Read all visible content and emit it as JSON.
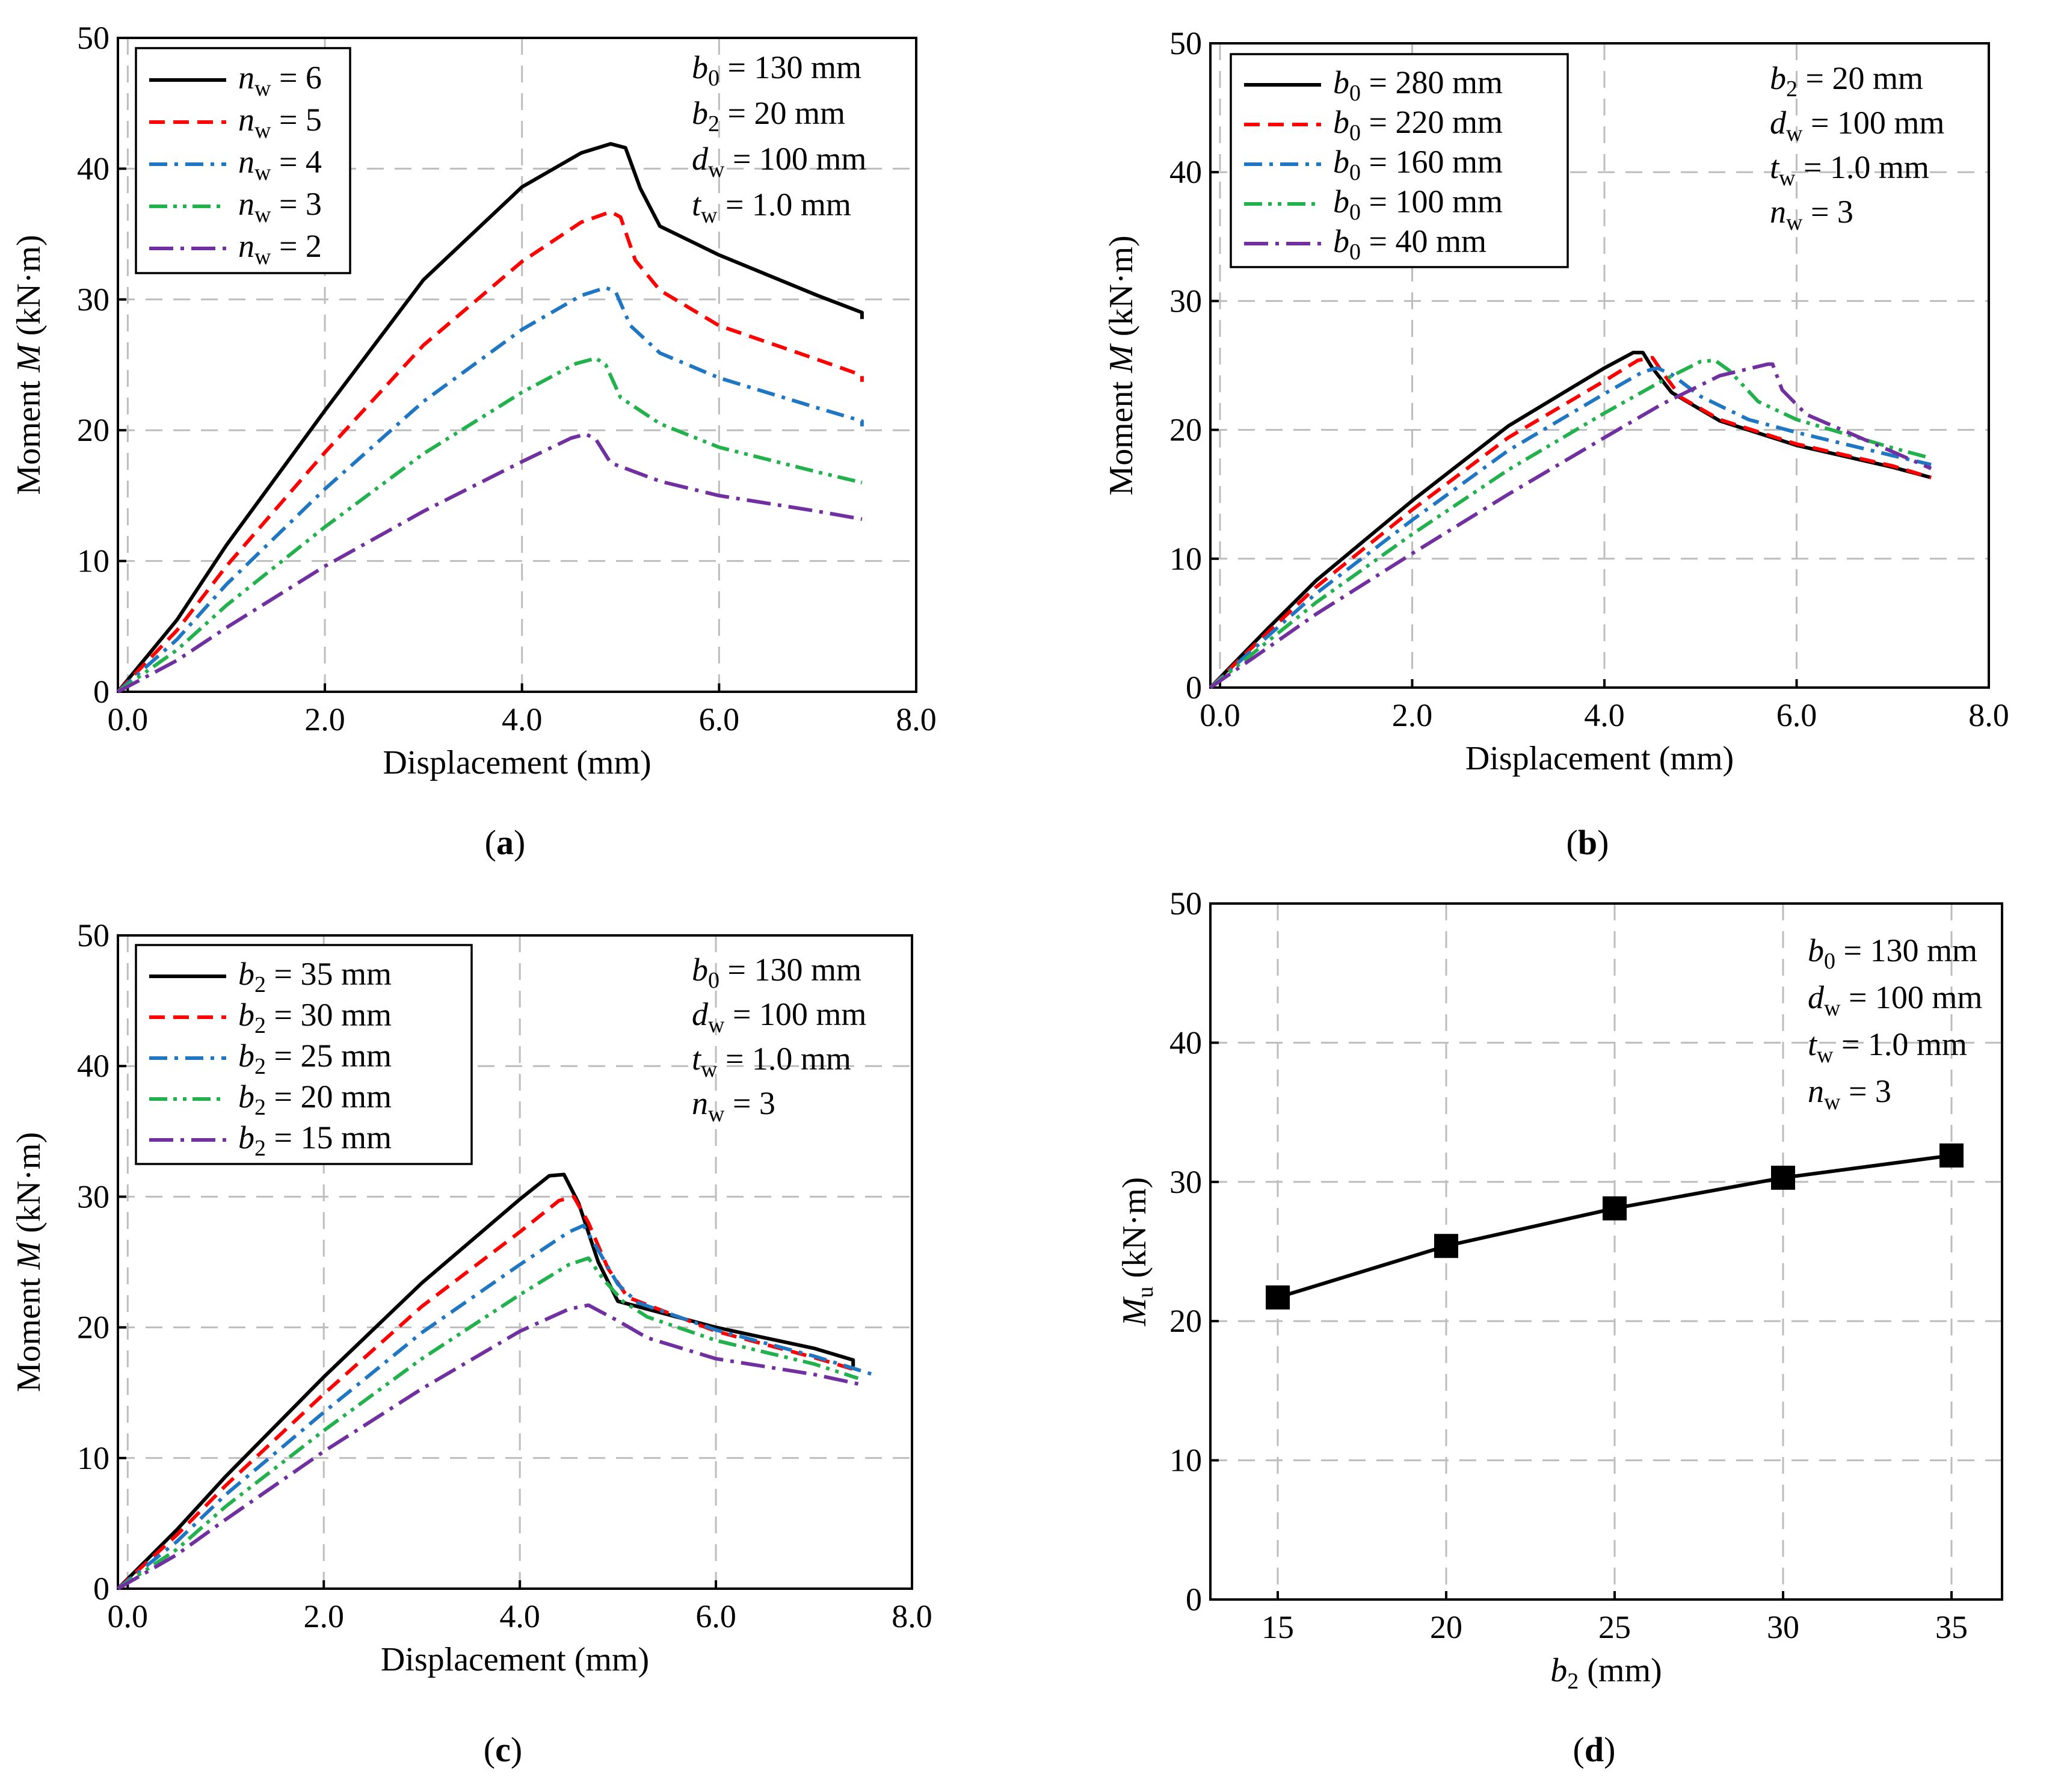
{
  "chart_data": [
    {
      "type": "line",
      "panel": "a",
      "caption_letter": "a",
      "xlabel": "Displacement (mm)",
      "ylabel": "Moment M (kN·m)",
      "ylabel_parts": {
        "pre": "Moment ",
        "ital": "M",
        "post": " (kN·m)"
      },
      "xlim": [
        -0.1,
        8.0
      ],
      "ylim": [
        0,
        50
      ],
      "xticks": [
        0,
        2,
        4,
        6,
        8
      ],
      "xticklabels": [
        "0.0",
        "2.0",
        "4.0",
        "6.0",
        "8.0"
      ],
      "yticks": [
        0,
        10,
        20,
        30,
        40,
        50
      ],
      "yticklabels": [
        "0",
        "10",
        "20",
        "30",
        "40",
        "50"
      ],
      "grid": true,
      "legend_position": "top-left",
      "annotations": [
        {
          "sym": "b",
          "sub": "0",
          "rest": " = 130 mm"
        },
        {
          "sym": "b",
          "sub": "2",
          "rest": " = 20 mm"
        },
        {
          "sym": "d",
          "sub": "w",
          "rest": " = 100 mm"
        },
        {
          "sym": "t",
          "sub": "w",
          "rest": " = 1.0 mm"
        }
      ],
      "series": [
        {
          "name": "nw = 6",
          "label": {
            "sym": "n",
            "sub": "w",
            "rest": " = 6"
          },
          "color": "#000000",
          "dash": "solid",
          "x": [
            -0.1,
            0.5,
            1.0,
            2.0,
            3.0,
            4.0,
            4.6,
            4.9,
            5.05,
            5.2,
            5.4,
            6.0,
            7.0,
            7.45,
            7.45
          ],
          "y": [
            0,
            5.5,
            11.2,
            21.5,
            31.5,
            38.6,
            41.2,
            41.9,
            41.6,
            38.5,
            35.6,
            33.4,
            30.3,
            29.0,
            28.5
          ]
        },
        {
          "name": "nw = 5",
          "label": {
            "sym": "n",
            "sub": "w",
            "rest": " = 5"
          },
          "color": "#ff0000",
          "dash": "dashed",
          "x": [
            -0.1,
            0.5,
            1.0,
            2.0,
            3.0,
            4.0,
            4.6,
            4.9,
            5.0,
            5.15,
            5.4,
            6.0,
            7.0,
            7.45,
            7.45
          ],
          "y": [
            0,
            4.7,
            9.6,
            18.3,
            26.5,
            32.9,
            35.9,
            36.7,
            36.3,
            33.0,
            30.7,
            28.0,
            25.4,
            24.2,
            23.7
          ]
        },
        {
          "name": "nw = 4",
          "label": {
            "sym": "n",
            "sub": "w",
            "rest": " = 4"
          },
          "color": "#1f77c4",
          "dash": "dashdot",
          "x": [
            -0.1,
            0.5,
            1.0,
            2.0,
            3.0,
            4.0,
            4.6,
            4.85,
            4.95,
            5.1,
            5.4,
            6.0,
            7.0,
            7.45,
            7.45
          ],
          "y": [
            0,
            4.0,
            8.2,
            15.5,
            22.2,
            27.7,
            30.3,
            30.9,
            30.6,
            28.0,
            25.9,
            24.0,
            21.7,
            20.7,
            20.3
          ]
        },
        {
          "name": "nw = 3",
          "label": {
            "sym": "n",
            "sub": "w",
            "rest": " = 3"
          },
          "color": "#22b14c",
          "dash": "dashdotdot",
          "x": [
            -0.1,
            0.5,
            1.0,
            2.0,
            3.0,
            4.0,
            4.55,
            4.75,
            4.85,
            5.0,
            5.4,
            6.0,
            7.0,
            7.45
          ],
          "y": [
            0,
            3.2,
            6.6,
            12.6,
            18.2,
            22.9,
            25.1,
            25.5,
            25.0,
            22.5,
            20.5,
            18.7,
            16.8,
            16.0
          ]
        },
        {
          "name": "nw = 2",
          "label": {
            "sym": "n",
            "sub": "w",
            "rest": " = 2"
          },
          "color": "#7030a0",
          "dash": "dashdotlong",
          "x": [
            -0.1,
            0.5,
            1.0,
            2.0,
            3.0,
            4.0,
            4.5,
            4.65,
            4.75,
            4.9,
            5.4,
            6.0,
            7.0,
            7.45
          ],
          "y": [
            0,
            2.4,
            4.9,
            9.6,
            13.8,
            17.6,
            19.4,
            19.7,
            19.3,
            17.5,
            16.1,
            15.0,
            13.8,
            13.2
          ]
        }
      ]
    },
    {
      "type": "line",
      "panel": "b",
      "caption_letter": "b",
      "xlabel": "Displacement (mm)",
      "ylabel": "Moment M (kN·m)",
      "ylabel_parts": {
        "pre": "Moment ",
        "ital": "M",
        "post": " (kN·m)"
      },
      "xlim": [
        -0.1,
        8.0
      ],
      "ylim": [
        0,
        50
      ],
      "xticks": [
        0,
        2,
        4,
        6,
        8
      ],
      "xticklabels": [
        "0.0",
        "2.0",
        "4.0",
        "6.0",
        "8.0"
      ],
      "yticks": [
        0,
        10,
        20,
        30,
        40,
        50
      ],
      "yticklabels": [
        "0",
        "10",
        "20",
        "30",
        "40",
        "50"
      ],
      "grid": true,
      "legend_position": "top-left",
      "annotations": [
        {
          "sym": "b",
          "sub": "2",
          "rest": " = 20 mm"
        },
        {
          "sym": "d",
          "sub": "w",
          "rest": " = 100 mm"
        },
        {
          "sym": "t",
          "sub": "w",
          "rest": " = 1.0 mm"
        },
        {
          "sym": "n",
          "sub": "w",
          "rest": " = 3"
        }
      ],
      "series": [
        {
          "name": "b0 = 280 mm",
          "label": {
            "sym": "b",
            "sub": "0",
            "rest": " = 280 mm"
          },
          "color": "#000000",
          "dash": "solid",
          "x": [
            -0.1,
            0.5,
            1.0,
            2.0,
            3.0,
            4.0,
            4.3,
            4.4,
            4.5,
            4.7,
            5.2,
            6.0,
            7.0,
            7.4
          ],
          "y": [
            0,
            4.6,
            8.3,
            14.5,
            20.3,
            24.8,
            26.0,
            26.0,
            24.8,
            22.9,
            20.7,
            18.8,
            17.1,
            16.3
          ]
        },
        {
          "name": "b0 = 220 mm",
          "label": {
            "sym": "b",
            "sub": "0",
            "rest": " = 220 mm"
          },
          "color": "#ff0000",
          "dash": "dashed",
          "x": [
            -0.1,
            0.5,
            1.0,
            2.0,
            3.0,
            4.0,
            4.35,
            4.5,
            4.6,
            4.8,
            5.2,
            6.0,
            7.0,
            7.4
          ],
          "y": [
            0,
            4.3,
            7.8,
            13.8,
            19.4,
            23.8,
            25.4,
            25.6,
            24.5,
            22.5,
            20.8,
            18.9,
            17.2,
            16.3
          ]
        },
        {
          "name": "b0 = 160 mm",
          "label": {
            "sym": "b",
            "sub": "0",
            "rest": " = 160 mm"
          },
          "color": "#1f77c4",
          "dash": "dashdot",
          "x": [
            -0.1,
            0.5,
            1.0,
            2.0,
            3.0,
            4.0,
            4.4,
            4.55,
            4.7,
            5.0,
            5.5,
            6.0,
            7.0,
            7.4
          ],
          "y": [
            0,
            4.0,
            7.3,
            13.0,
            18.4,
            22.8,
            24.5,
            24.8,
            24.3,
            22.6,
            20.8,
            19.8,
            18.0,
            17.3
          ]
        },
        {
          "name": "b0 = 100 mm",
          "label": {
            "sym": "b",
            "sub": "0",
            "rest": " = 100 mm"
          },
          "color": "#22b14c",
          "dash": "dashdotdot",
          "x": [
            -0.1,
            0.5,
            1.0,
            2.0,
            3.0,
            4.0,
            4.6,
            5.0,
            5.15,
            5.3,
            5.6,
            6.0,
            7.0,
            7.4
          ],
          "y": [
            0,
            3.6,
            6.6,
            11.9,
            16.9,
            21.3,
            23.8,
            25.3,
            25.4,
            24.6,
            22.2,
            20.8,
            18.6,
            17.8
          ]
        },
        {
          "name": "b0 = 40 mm",
          "label": {
            "sym": "b",
            "sub": "0",
            "rest": " = 40 mm"
          },
          "color": "#7030a0",
          "dash": "dashdotlong",
          "x": [
            -0.1,
            0.5,
            1.0,
            2.0,
            3.0,
            4.0,
            4.6,
            5.2,
            5.7,
            5.75,
            5.85,
            6.1,
            7.0,
            7.4
          ],
          "y": [
            0,
            3.1,
            5.7,
            10.4,
            15.0,
            19.4,
            22.0,
            24.2,
            25.1,
            25.1,
            23.1,
            21.2,
            18.3,
            17.0
          ]
        }
      ]
    },
    {
      "type": "line",
      "panel": "c",
      "caption_letter": "c",
      "xlabel": "Displacement (mm)",
      "ylabel": "Moment M (kN·m)",
      "ylabel_parts": {
        "pre": "Moment ",
        "ital": "M",
        "post": " (kN·m)"
      },
      "xlim": [
        -0.1,
        8.0
      ],
      "ylim": [
        0,
        50
      ],
      "xticks": [
        0,
        2,
        4,
        6,
        8
      ],
      "xticklabels": [
        "0.0",
        "2.0",
        "4.0",
        "6.0",
        "8.0"
      ],
      "yticks": [
        0,
        10,
        20,
        30,
        40,
        50
      ],
      "yticklabels": [
        "0",
        "10",
        "20",
        "30",
        "40",
        "50"
      ],
      "grid": true,
      "legend_position": "top-left",
      "annotations": [
        {
          "sym": "b",
          "sub": "0",
          "rest": " = 130 mm"
        },
        {
          "sym": "d",
          "sub": "w",
          "rest": " = 100 mm"
        },
        {
          "sym": "t",
          "sub": "w",
          "rest": " = 1.0 mm"
        },
        {
          "sym": "n",
          "sub": "w",
          "rest": " = 3"
        }
      ],
      "series": [
        {
          "name": "b2 = 35 mm",
          "label": {
            "sym": "b",
            "sub": "2",
            "rest": " = 35 mm"
          },
          "color": "#000000",
          "dash": "solid",
          "x": [
            -0.1,
            0.5,
            1.0,
            2.0,
            3.0,
            4.0,
            4.3,
            4.45,
            4.6,
            4.8,
            5.0,
            6.0,
            7.0,
            7.4,
            7.4
          ],
          "y": [
            0,
            4.5,
            8.6,
            16.2,
            23.4,
            29.8,
            31.6,
            31.7,
            29.5,
            25.0,
            22.0,
            20.0,
            18.4,
            17.5,
            17.0
          ]
        },
        {
          "name": "b2 = 30 mm",
          "label": {
            "sym": "b",
            "sub": "2",
            "rest": " = 30 mm"
          },
          "color": "#ff0000",
          "dash": "dashed",
          "x": [
            -0.1,
            0.5,
            1.0,
            2.0,
            3.0,
            4.0,
            4.4,
            4.55,
            4.7,
            4.9,
            5.1,
            6.0,
            7.0,
            7.4
          ],
          "y": [
            0,
            4.1,
            7.9,
            14.9,
            21.6,
            27.3,
            29.7,
            30.0,
            28.0,
            24.5,
            22.3,
            19.7,
            17.7,
            16.8
          ]
        },
        {
          "name": "b2 = 25 mm",
          "label": {
            "sym": "b",
            "sub": "2",
            "rest": " = 25 mm"
          },
          "color": "#1f77c4",
          "dash": "dashdot",
          "x": [
            -0.1,
            0.5,
            1.0,
            2.0,
            3.0,
            4.0,
            4.5,
            4.65,
            4.8,
            5.0,
            5.2,
            6.0,
            7.0,
            7.6
          ],
          "y": [
            0,
            3.6,
            7.2,
            13.5,
            19.6,
            24.8,
            27.3,
            27.8,
            25.9,
            23.3,
            21.9,
            19.8,
            17.8,
            16.4
          ]
        },
        {
          "name": "b2 = 20 mm",
          "label": {
            "sym": "b",
            "sub": "2",
            "rest": " = 20 mm"
          },
          "color": "#22b14c",
          "dash": "dashdotdot",
          "x": [
            -0.1,
            0.5,
            1.0,
            2.0,
            3.0,
            4.0,
            4.5,
            4.7,
            4.85,
            5.05,
            5.3,
            6.0,
            7.0,
            7.45
          ],
          "y": [
            0,
            3.0,
            6.3,
            12.1,
            17.6,
            22.5,
            24.8,
            25.3,
            23.7,
            22.0,
            20.8,
            19.0,
            17.2,
            16.1
          ]
        },
        {
          "name": "b2 = 15 mm",
          "label": {
            "sym": "b",
            "sub": "2",
            "rest": " = 15 mm"
          },
          "color": "#7030a0",
          "dash": "dashdotlong",
          "x": [
            -0.1,
            0.5,
            1.0,
            2.0,
            3.0,
            4.0,
            4.5,
            4.7,
            4.8,
            5.0,
            5.3,
            6.0,
            7.0,
            7.5
          ],
          "y": [
            0,
            2.6,
            5.3,
            10.5,
            15.3,
            19.7,
            21.4,
            21.7,
            21.3,
            20.5,
            19.2,
            17.6,
            16.4,
            15.6
          ]
        }
      ]
    },
    {
      "type": "line",
      "panel": "d",
      "caption_letter": "d",
      "xlabel": "b2 (mm)",
      "xlabel_parts": {
        "ital": "b",
        "sub": "2",
        "post": " (mm)"
      },
      "ylabel": "Mu (kN·m)",
      "ylabel_parts": {
        "ital": "M",
        "sub": "u",
        "post": " (kN·m)"
      },
      "xlim": [
        13,
        36.5
      ],
      "ylim": [
        0,
        50
      ],
      "xticks": [
        15,
        20,
        25,
        30,
        35
      ],
      "xticklabels": [
        "15",
        "20",
        "25",
        "30",
        "35"
      ],
      "yticks": [
        0,
        10,
        20,
        30,
        40,
        50
      ],
      "yticklabels": [
        "0",
        "10",
        "20",
        "30",
        "40",
        "50"
      ],
      "grid": true,
      "annotations": [
        {
          "sym": "b",
          "sub": "0",
          "rest": " = 130 mm"
        },
        {
          "sym": "d",
          "sub": "w",
          "rest": " = 100 mm"
        },
        {
          "sym": "t",
          "sub": "w",
          "rest": " = 1.0 mm"
        },
        {
          "sym": "n",
          "sub": "w",
          "rest": " = 3"
        }
      ],
      "series": [
        {
          "name": "Mu",
          "color": "#000000",
          "dash": "solid",
          "marker": "square",
          "x": [
            15,
            20,
            25,
            30,
            35
          ],
          "y": [
            21.7,
            25.4,
            28.1,
            30.3,
            31.9
          ]
        }
      ]
    }
  ]
}
